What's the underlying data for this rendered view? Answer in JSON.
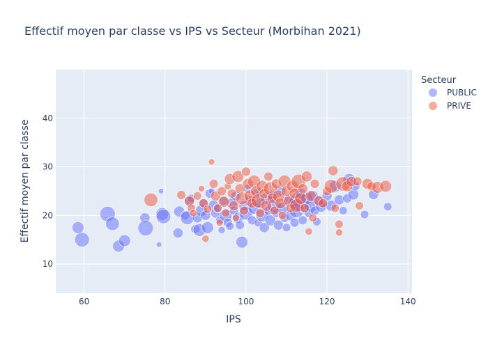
{
  "chart_data": {
    "type": "scatter",
    "title": "Effectif moyen par classe vs IPS vs Secteur (Morbihan 2021)",
    "xlabel": "IPS",
    "ylabel": "Effectif moyen par classe",
    "xlim": [
      53,
      141
    ],
    "ylim": [
      4,
      50
    ],
    "x_ticks": [
      60,
      80,
      100,
      120,
      140
    ],
    "y_ticks": [
      10,
      20,
      30,
      40
    ],
    "grid": true,
    "legend_title": "Secteur",
    "legend_position": "right",
    "series": [
      {
        "name": "PUBLIC",
        "color": "#636efa",
        "points": [
          [
            58.5,
            17.5,
            1.3
          ],
          [
            59.5,
            15.0,
            1.6
          ],
          [
            65.8,
            20.3,
            1.7
          ],
          [
            67.0,
            18.3,
            1.5
          ],
          [
            68.5,
            13.7,
            1.3
          ],
          [
            70.0,
            14.8,
            1.3
          ],
          [
            75.0,
            19.5,
            1.1
          ],
          [
            75.2,
            17.4,
            1.7
          ],
          [
            78.5,
            14.0,
            0.6
          ],
          [
            79.0,
            25.0,
            0.6
          ],
          [
            79.3,
            20.3,
            1.4
          ],
          [
            79.6,
            19.8,
            1.6
          ],
          [
            83.2,
            16.4,
            1.1
          ],
          [
            83.5,
            20.8,
            1.2
          ],
          [
            85.0,
            20.0,
            1.0
          ],
          [
            85.5,
            19.5,
            1.5
          ],
          [
            86.0,
            22.8,
            1.1
          ],
          [
            86.5,
            23.5,
            0.9
          ],
          [
            87.5,
            17.2,
            1.0
          ],
          [
            88.0,
            19.5,
            1.1
          ],
          [
            88.5,
            17.0,
            1.4
          ],
          [
            89.0,
            21.0,
            1.3
          ],
          [
            89.5,
            22.5,
            1.0
          ],
          [
            90.0,
            20.0,
            1.1
          ],
          [
            90.5,
            17.5,
            1.3
          ],
          [
            91.0,
            24.5,
            1.0
          ],
          [
            91.5,
            25.0,
            0.7
          ],
          [
            92.0,
            22.0,
            1.2
          ],
          [
            92.5,
            20.5,
            1.1
          ],
          [
            93.0,
            21.5,
            1.0
          ],
          [
            93.5,
            19.0,
            0.9
          ],
          [
            94.0,
            17.0,
            0.8
          ],
          [
            94.5,
            23.0,
            1.0
          ],
          [
            95.0,
            20.0,
            1.4
          ],
          [
            95.5,
            18.5,
            1.0
          ],
          [
            96.0,
            17.8,
            0.9
          ],
          [
            96.5,
            22.5,
            1.2
          ],
          [
            97.0,
            21.0,
            1.0
          ],
          [
            97.5,
            24.0,
            1.1
          ],
          [
            98.0,
            19.5,
            1.2
          ],
          [
            98.5,
            18.0,
            1.0
          ],
          [
            99.0,
            14.5,
            1.3
          ],
          [
            99.5,
            22.0,
            1.1
          ],
          [
            100.0,
            20.5,
            1.5
          ],
          [
            100.5,
            25.5,
            1.0
          ],
          [
            101.0,
            23.0,
            1.2
          ],
          [
            101.5,
            19.0,
            1.0
          ],
          [
            102.0,
            21.5,
            1.3
          ],
          [
            102.5,
            24.5,
            1.1
          ],
          [
            103.0,
            18.5,
            0.9
          ],
          [
            103.5,
            22.5,
            1.2
          ],
          [
            104.0,
            20.0,
            1.4
          ],
          [
            104.5,
            17.5,
            1.1
          ],
          [
            105.0,
            23.5,
            1.3
          ],
          [
            105.5,
            21.0,
            1.0
          ],
          [
            106.0,
            19.0,
            1.2
          ],
          [
            106.5,
            24.0,
            1.1
          ],
          [
            107.0,
            22.0,
            1.5
          ],
          [
            107.5,
            20.5,
            1.0
          ],
          [
            108.0,
            18.0,
            1.1
          ],
          [
            108.5,
            25.0,
            1.2
          ],
          [
            109.0,
            21.5,
            1.3
          ],
          [
            109.5,
            19.5,
            1.0
          ],
          [
            110.0,
            17.5,
            0.9
          ],
          [
            110.5,
            23.0,
            1.4
          ],
          [
            111.0,
            20.0,
            1.2
          ],
          [
            111.5,
            22.5,
            1.1
          ],
          [
            112.0,
            18.5,
            1.0
          ],
          [
            112.5,
            21.0,
            1.6
          ],
          [
            113.0,
            22.8,
            2.1
          ],
          [
            113.5,
            24.5,
            1.2
          ],
          [
            114.0,
            19.0,
            1.0
          ],
          [
            114.5,
            21.5,
            1.1
          ],
          [
            115.0,
            23.5,
            1.3
          ],
          [
            115.5,
            20.5,
            1.0
          ],
          [
            116.0,
            22.0,
            1.4
          ],
          [
            116.5,
            24.0,
            1.2
          ],
          [
            117.0,
            21.0,
            1.0
          ],
          [
            117.5,
            18.7,
            0.9
          ],
          [
            118.0,
            23.0,
            1.1
          ],
          [
            118.5,
            21.8,
            1.2
          ],
          [
            119.0,
            22.5,
            1.0
          ],
          [
            120.0,
            24.0,
            1.1
          ],
          [
            121.0,
            22.0,
            1.2
          ],
          [
            122.0,
            26.0,
            1.3
          ],
          [
            123.0,
            23.2,
            1.1
          ],
          [
            124.0,
            21.0,
            0.9
          ],
          [
            125.0,
            23.5,
            1.0
          ],
          [
            125.5,
            27.3,
            1.4
          ],
          [
            126.5,
            24.3,
            1.2
          ],
          [
            127.0,
            26.0,
            1.0
          ],
          [
            129.3,
            20.2,
            0.9
          ],
          [
            131.5,
            24.3,
            1.1
          ],
          [
            135.0,
            21.8,
            0.9
          ]
        ]
      },
      {
        "name": "PRIVE",
        "color": "#ef553b",
        "points": [
          [
            76.5,
            23.2,
            1.5
          ],
          [
            84.0,
            24.2,
            1.0
          ],
          [
            86.0,
            23.0,
            1.1
          ],
          [
            86.5,
            21.5,
            0.9
          ],
          [
            87.0,
            20.5,
            0.8
          ],
          [
            88.0,
            24.0,
            0.9
          ],
          [
            89.0,
            25.5,
            0.7
          ],
          [
            89.5,
            22.5,
            1.0
          ],
          [
            90.0,
            15.2,
            0.8
          ],
          [
            90.5,
            21.3,
            0.9
          ],
          [
            91.5,
            31.0,
            0.7
          ],
          [
            92.0,
            26.5,
            1.0
          ],
          [
            92.5,
            24.0,
            1.1
          ],
          [
            93.0,
            21.5,
            0.9
          ],
          [
            93.5,
            18.5,
            0.8
          ],
          [
            94.0,
            25.0,
            1.0
          ],
          [
            94.5,
            22.8,
            1.2
          ],
          [
            95.0,
            20.5,
            0.9
          ],
          [
            95.5,
            26.0,
            0.8
          ],
          [
            96.0,
            27.5,
            1.2
          ],
          [
            96.5,
            24.5,
            1.0
          ],
          [
            97.0,
            22.0,
            1.1
          ],
          [
            97.5,
            19.5,
            0.8
          ],
          [
            98.0,
            28.0,
            1.3
          ],
          [
            98.5,
            25.5,
            1.1
          ],
          [
            99.0,
            23.5,
            1.4
          ],
          [
            99.5,
            21.0,
            1.0
          ],
          [
            100.0,
            29.0,
            1.0
          ],
          [
            100.5,
            26.5,
            1.2
          ],
          [
            101.0,
            24.0,
            1.3
          ],
          [
            101.5,
            22.5,
            1.1
          ],
          [
            102.0,
            27.0,
            1.4
          ],
          [
            102.5,
            25.0,
            1.2
          ],
          [
            103.0,
            23.0,
            1.5
          ],
          [
            103.5,
            20.5,
            1.0
          ],
          [
            104.0,
            26.0,
            1.3
          ],
          [
            104.5,
            24.5,
            1.1
          ],
          [
            105.0,
            22.0,
            1.2
          ],
          [
            105.5,
            28.0,
            1.0
          ],
          [
            106.0,
            25.5,
            1.5
          ],
          [
            106.5,
            23.5,
            1.2
          ],
          [
            107.0,
            21.0,
            1.0
          ],
          [
            107.5,
            26.5,
            1.1
          ],
          [
            108.0,
            24.0,
            1.3
          ],
          [
            108.5,
            22.5,
            1.2
          ],
          [
            109.0,
            20.0,
            0.9
          ],
          [
            109.5,
            27.0,
            1.4
          ],
          [
            110.0,
            25.0,
            1.2
          ],
          [
            110.5,
            23.0,
            1.1
          ],
          [
            111.0,
            21.5,
            1.0
          ],
          [
            111.5,
            26.0,
            1.3
          ],
          [
            112.0,
            24.5,
            1.2
          ],
          [
            112.5,
            22.0,
            1.5
          ],
          [
            113.0,
            27.0,
            1.6
          ],
          [
            113.5,
            23.5,
            1.3
          ],
          [
            114.0,
            25.5,
            1.1
          ],
          [
            114.5,
            21.5,
            1.0
          ],
          [
            115.0,
            28.0,
            1.2
          ],
          [
            115.5,
            16.7,
            0.8
          ],
          [
            116.0,
            24.0,
            1.2
          ],
          [
            116.5,
            19.5,
            0.9
          ],
          [
            117.0,
            26.5,
            1.0
          ],
          [
            118.0,
            23.0,
            1.1
          ],
          [
            119.0,
            22.5,
            1.0
          ],
          [
            120.0,
            25.0,
            1.0
          ],
          [
            121.0,
            26.0,
            1.5
          ],
          [
            121.5,
            29.2,
            1.1
          ],
          [
            122.0,
            21.5,
            0.9
          ],
          [
            123.0,
            18.2,
            0.9
          ],
          [
            123.0,
            16.5,
            0.8
          ],
          [
            124.0,
            26.5,
            1.6
          ],
          [
            125.0,
            26.0,
            1.2
          ],
          [
            126.0,
            27.0,
            1.1
          ],
          [
            127.5,
            27.0,
            1.0
          ],
          [
            128.0,
            22.0,
            0.9
          ],
          [
            130.0,
            26.5,
            1.2
          ],
          [
            131.0,
            26.0,
            1.0
          ],
          [
            132.5,
            25.8,
            1.3
          ],
          [
            134.5,
            26.0,
            1.3
          ]
        ]
      }
    ]
  }
}
